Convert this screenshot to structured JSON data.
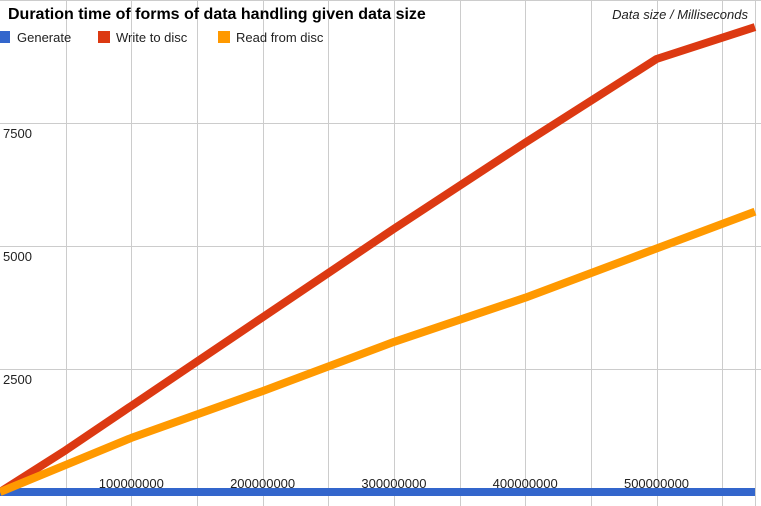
{
  "chart_data": {
    "type": "line",
    "title": "Duration time of forms of data handling given data size",
    "axis_note": "Data size / Milliseconds",
    "xlim": [
      0,
      575000000
    ],
    "ylim": [
      0,
      10000
    ],
    "x_ticks": [
      {
        "value": 100000000,
        "label": "100000000"
      },
      {
        "value": 200000000,
        "label": "200000000"
      },
      {
        "value": 300000000,
        "label": "300000000"
      },
      {
        "value": 400000000,
        "label": "400000000"
      },
      {
        "value": 500000000,
        "label": "500000000"
      }
    ],
    "y_ticks": [
      {
        "value": 2500,
        "label": "2500"
      },
      {
        "value": 5000,
        "label": "5000"
      },
      {
        "value": 7500,
        "label": "7500"
      }
    ],
    "grid": true,
    "legend_position": "top-left",
    "series": [
      {
        "name": "Generate",
        "color": "#3366cc",
        "x": [
          0,
          100000000,
          200000000,
          300000000,
          400000000,
          500000000,
          575000000
        ],
        "y": [
          0,
          0,
          0,
          0,
          0,
          0,
          0
        ]
      },
      {
        "name": "Write to disc",
        "color": "#dc3912",
        "x": [
          0,
          50000000,
          100000000,
          200000000,
          300000000,
          400000000,
          500000000,
          575000000
        ],
        "y": [
          0,
          850,
          1750,
          3550,
          5350,
          7100,
          8800,
          9450
        ]
      },
      {
        "name": "Read from disc",
        "color": "#ff9900",
        "x": [
          0,
          50000000,
          100000000,
          200000000,
          300000000,
          400000000,
          500000000,
          575000000
        ],
        "y": [
          0,
          550,
          1100,
          2050,
          3050,
          3950,
          4950,
          5700
        ]
      }
    ]
  }
}
